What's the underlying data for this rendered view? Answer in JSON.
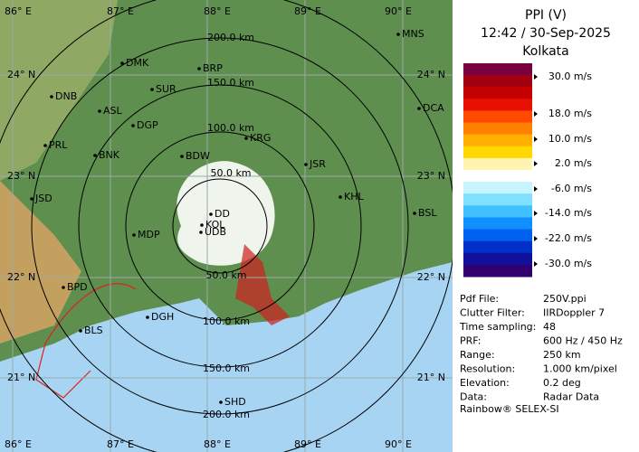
{
  "header": {
    "title": "PPI (V)",
    "time": "12:42 / 30-Sep-2025",
    "station": "Kolkata"
  },
  "color_scale": {
    "labels": [
      "30.0 m/s",
      "18.0 m/s",
      "10.0 m/s",
      "2.0 m/s",
      "-6.0 m/s",
      "-14.0 m/s",
      "-22.0 m/s",
      "-30.0 m/s"
    ],
    "colors": [
      "#7a0040",
      "#a00010",
      "#c40000",
      "#e81000",
      "#ff4a00",
      "#ff8000",
      "#ffb000",
      "#ffd800",
      "#fff4b0",
      "#ffffff",
      "#c8f4ff",
      "#80e0ff",
      "#40c0ff",
      "#1090ff",
      "#0060f0",
      "#0030c8",
      "#10109a",
      "#300070"
    ]
  },
  "info": [
    [
      "Pdf File:",
      "250V.ppi"
    ],
    [
      "Clutter Filter:",
      "IIRDoppler 7"
    ],
    [
      "Time sampling:",
      "48"
    ],
    [
      "PRF:",
      "600 Hz / 450 Hz"
    ],
    [
      "Range:",
      "250 km"
    ],
    [
      "Resolution:",
      "1.000 km/pixel"
    ],
    [
      "Elevation:",
      "0.2 deg"
    ],
    [
      "Data:",
      "Radar Data"
    ]
  ],
  "footer": "Rainbow® SELEX-SI",
  "map": {
    "lon_labels": [
      "86° E",
      "87° E",
      "88° E",
      "89° E",
      "90° E"
    ],
    "lat_labels": [
      "24° N",
      "23° N",
      "22° N",
      "21° N"
    ],
    "range_labels": [
      "50.0 km",
      "100.0 km",
      "150.0 km",
      "200.0 km"
    ],
    "cities": [
      "MNS",
      "DMK",
      "BRP",
      "DNB",
      "SUR",
      "ASL",
      "DGP",
      "DCA",
      "PRL",
      "BNK",
      "KRG",
      "BDW",
      "JSR",
      "JSD",
      "KHL",
      "DD",
      "KOL",
      "UDB",
      "MDP",
      "BSL",
      "BPD",
      "DGH",
      "BLS",
      "SHD"
    ]
  }
}
